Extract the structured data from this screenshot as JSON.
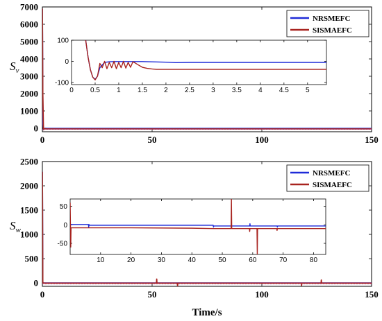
{
  "colors": {
    "blue": "#1f2bd8",
    "red": "#a8231f",
    "purple": "#b23ab8",
    "axis": "#000000"
  },
  "chart_data": [
    {
      "type": "line",
      "ylabel": {
        "main": "S",
        "sub": "v"
      },
      "xlim": [
        0,
        150
      ],
      "ylim": [
        -200,
        7000
      ],
      "xticks": [
        0,
        50,
        100,
        150
      ],
      "yticks": [
        0,
        1000,
        2000,
        3000,
        4000,
        5000,
        6000,
        7000
      ],
      "legend": {
        "placement": "top-right",
        "entries": [
          "NRSMEFC",
          "SISMAEFC"
        ]
      },
      "series": [
        {
          "name": "NRSMEFC",
          "color": "#1f2bd8",
          "x": [
            0,
            0.25,
            0.5,
            1,
            1.5,
            2,
            5,
            20,
            50,
            80,
            100,
            120,
            150
          ],
          "y": [
            6900,
            300,
            -80,
            -10,
            -5,
            -10,
            -10,
            -10,
            -10,
            -10,
            -10,
            -10,
            -10
          ]
        },
        {
          "name": "SISMAEFC",
          "color": "#a8231f",
          "x": [
            0,
            0.2,
            0.5,
            1,
            1.5,
            2,
            5,
            20,
            50,
            80,
            100,
            120,
            150
          ],
          "y": [
            6900,
            2000,
            -80,
            -20,
            -40,
            -40,
            -40,
            -40,
            -40,
            -40,
            -40,
            -40,
            -40
          ]
        }
      ],
      "inset": {
        "xlim": [
          0,
          5.4
        ],
        "ylim": [
          -110,
          100
        ],
        "xticks": [
          0,
          0.5,
          1,
          1.5,
          2,
          2.5,
          3,
          3.5,
          4,
          4.5,
          5
        ],
        "yticks": [
          -100,
          0,
          100
        ],
        "series": [
          {
            "name": "NRSMEFC",
            "color": "#1f2bd8",
            "x": [
              0.3,
              0.35,
              0.4,
              0.45,
              0.5,
              0.55,
              0.6,
              0.7,
              0.8,
              0.9,
              1.0,
              1.2,
              1.5,
              2.0,
              2.2,
              2.5,
              3,
              4,
              5,
              5.4
            ],
            "y": [
              100,
              20,
              -40,
              -75,
              -85,
              -70,
              -30,
              -5,
              -2,
              -1,
              -1,
              -1,
              -1,
              -4,
              -6,
              -5,
              -5,
              -5,
              -5,
              -5
            ]
          },
          {
            "name": "SISMAEFC",
            "color": "#a8231f",
            "x": [
              0.3,
              0.35,
              0.4,
              0.45,
              0.5,
              0.55,
              0.6,
              0.65,
              0.7,
              0.75,
              0.8,
              0.85,
              0.9,
              0.95,
              1.0,
              1.05,
              1.1,
              1.15,
              1.2,
              1.25,
              1.3,
              1.35,
              1.4,
              1.5,
              1.6,
              1.7,
              1.8,
              2.0,
              2.5,
              3,
              4,
              5,
              5.4
            ],
            "y": [
              100,
              20,
              -40,
              -75,
              -88,
              -70,
              -10,
              -30,
              0,
              -35,
              -5,
              -30,
              0,
              -35,
              -5,
              -30,
              0,
              -32,
              -5,
              -28,
              -2,
              -8,
              -15,
              -28,
              -33,
              -36,
              -38,
              -38,
              -38,
              -38,
              -38,
              -38,
              -38
            ]
          }
        ]
      }
    },
    {
      "type": "line",
      "ylabel": {
        "main": "S",
        "sub": "w"
      },
      "xlabel": "Time/s",
      "xlim": [
        0,
        150
      ],
      "ylim": [
        -70,
        2500
      ],
      "xticks": [
        0,
        50,
        100,
        150
      ],
      "yticks": [
        0,
        500,
        1000,
        1500,
        2000,
        2500
      ],
      "legend": {
        "placement": "top-right",
        "entries": [
          "NRSMEFC",
          "SISMAEFC"
        ]
      },
      "series": [
        {
          "name": "NRSMEFC",
          "color": "#1f2bd8",
          "x": [
            0,
            0.2,
            1,
            20,
            50,
            80,
            100,
            120,
            150
          ],
          "y": [
            2290,
            0,
            0,
            0,
            0,
            0,
            0,
            0,
            0
          ]
        },
        {
          "name": "SISMAEFC",
          "color": "#a8231f",
          "x": [
            0,
            0.2,
            1,
            52,
            52.1,
            52.2,
            52.3,
            61.5,
            61.6,
            61.7,
            61.8,
            118,
            118.1,
            118.2,
            118.3,
            127,
            127.1,
            127.2,
            127.3,
            150
          ],
          "y": [
            2290,
            0,
            -5,
            -5,
            80,
            -5,
            -5,
            -5,
            -60,
            -5,
            -5,
            -5,
            -50,
            -5,
            -5,
            -5,
            60,
            -5,
            -5,
            -5
          ]
        }
      ],
      "inset": {
        "xlim": [
          0,
          84
        ],
        "ylim": [
          -80,
          70
        ],
        "xticks": [
          10,
          20,
          30,
          40,
          50,
          60,
          70,
          80
        ],
        "yticks": [
          -50,
          0,
          50
        ],
        "series": [
          {
            "name": "NRSMEFC",
            "color": "#1f2bd8",
            "x": [
              0,
              5,
              6,
              6.1,
              6.2,
              6.3,
              20,
              40,
              47,
              47.1,
              47.2,
              58.9,
              59,
              59.1,
              59.2,
              60,
              67.9,
              68,
              68.1,
              68.2,
              75,
              84
            ],
            "y": [
              1,
              1,
              1,
              -6,
              1,
              -1,
              -1,
              -1,
              -1,
              -6,
              -3,
              -3,
              -3,
              3,
              -3,
              -3,
              -3,
              -3,
              -6,
              -3,
              -3,
              -3
            ]
          },
          {
            "name": "SISMAEFC",
            "color": "#a8231f",
            "x": [
              0,
              0.2,
              0.3,
              1,
              20,
              40,
              47,
              52.9,
              53,
              53.1,
              53.2,
              58.9,
              59,
              59.1,
              59.2,
              61.4,
              61.5,
              61.6,
              61.7,
              67.9,
              68,
              68.1,
              68.2,
              84
            ],
            "y": [
              60,
              -60,
              -8,
              -8,
              -8,
              -9,
              -10,
              -10,
              70,
              -10,
              -10,
              -10,
              -18,
              -10,
              -10,
              -10,
              -80,
              -10,
              -10,
              -10,
              -15,
              -10,
              -10,
              -10
            ]
          }
        ]
      }
    }
  ]
}
